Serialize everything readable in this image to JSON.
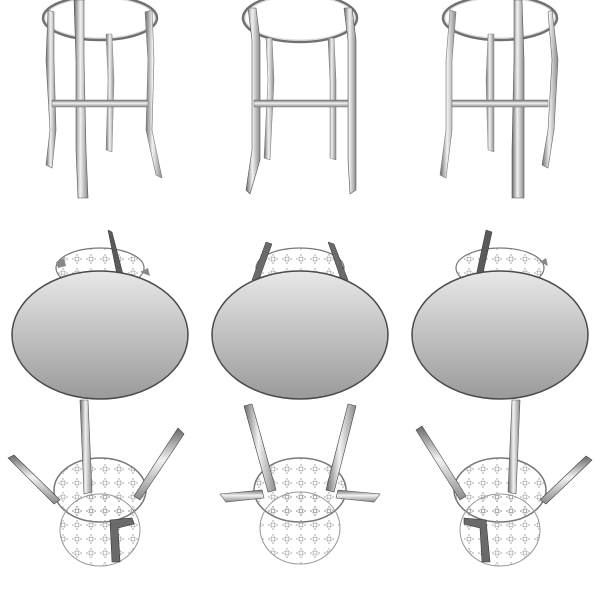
{
  "sheet": {
    "background": "#ffffff",
    "metal_light": "#f4f4f4",
    "metal_mid": "#bdbdbd",
    "metal_dark": "#5a5a5a",
    "seat_light": "#e6e6e6",
    "seat_dark": "#9c9c9c",
    "outline": "#4a4a4a"
  },
  "views": [
    {
      "row": "side",
      "column": 1,
      "icon": "stool-side-view-icon"
    },
    {
      "row": "side",
      "column": 2,
      "icon": "stool-front-view-icon"
    },
    {
      "row": "side",
      "column": 3,
      "icon": "stool-side-view-icon"
    },
    {
      "row": "top",
      "column": 1,
      "icon": "stool-top-view-icon"
    },
    {
      "row": "top",
      "column": 2,
      "icon": "stool-top-view-icon"
    },
    {
      "row": "top",
      "column": 3,
      "icon": "stool-top-view-icon"
    },
    {
      "row": "bottom",
      "column": 1,
      "icon": "stool-bottom-view-icon"
    },
    {
      "row": "bottom",
      "column": 2,
      "icon": "stool-bottom-view-icon"
    },
    {
      "row": "bottom",
      "column": 3,
      "icon": "stool-bottom-view-icon"
    }
  ]
}
